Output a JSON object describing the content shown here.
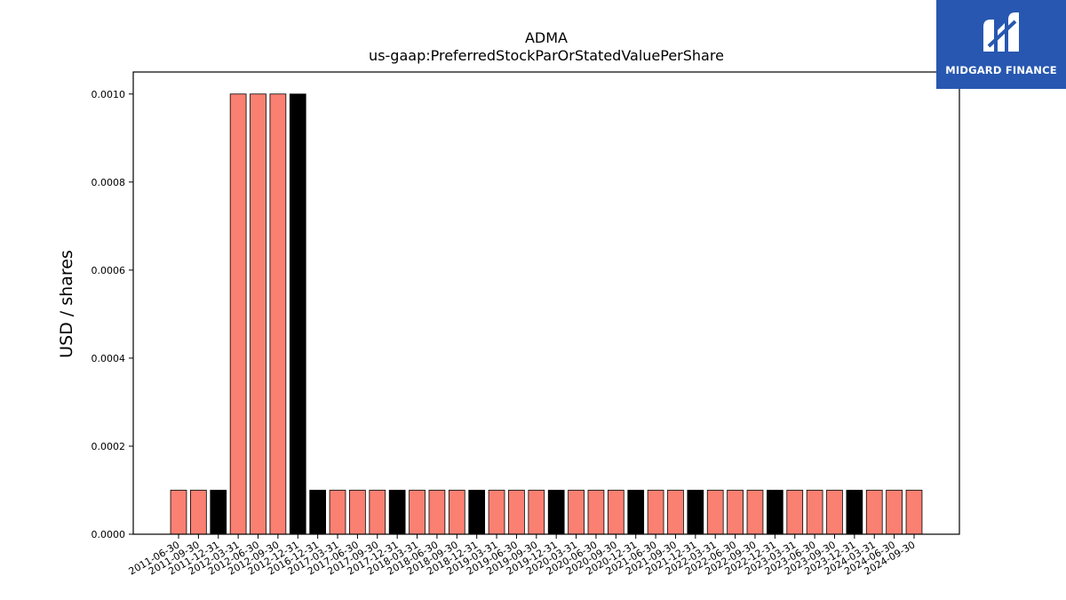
{
  "chart_data": {
    "type": "bar",
    "title": "ADMA",
    "subtitle": "us-gaap:PreferredStockParOrStatedValuePerShare",
    "xlabel": "",
    "ylabel": "USD / shares",
    "ylim": [
      0,
      0.00105
    ],
    "yticks": [
      "0.0000",
      "0.0002",
      "0.0004",
      "0.0006",
      "0.0008",
      "0.0010"
    ],
    "grid": false,
    "colors": {
      "default": "#fa8072",
      "highlight": "#000000",
      "edge": "#000000"
    },
    "categories": [
      "2011-06-30",
      "2011-09-30",
      "2011-12-31",
      "2012-03-31",
      "2012-06-30",
      "2012-09-30",
      "2012-12-31",
      "2016-12-31",
      "2017-03-31",
      "2017-06-30",
      "2017-09-30",
      "2017-12-31",
      "2018-03-31",
      "2018-06-30",
      "2018-09-30",
      "2018-12-31",
      "2019-03-31",
      "2019-06-30",
      "2019-09-30",
      "2019-12-31",
      "2020-03-31",
      "2020-06-30",
      "2020-09-30",
      "2020-12-31",
      "2021-06-30",
      "2021-09-30",
      "2021-12-31",
      "2022-03-31",
      "2022-06-30",
      "2022-09-30",
      "2022-12-31",
      "2023-03-31",
      "2023-06-30",
      "2023-09-30",
      "2023-12-31",
      "2024-03-31",
      "2024-06-30",
      "2024-09-30"
    ],
    "values": [
      0.0001,
      0.0001,
      0.0001,
      0.001,
      0.001,
      0.001,
      0.001,
      0.0001,
      0.0001,
      0.0001,
      0.0001,
      0.0001,
      0.0001,
      0.0001,
      0.0001,
      0.0001,
      0.0001,
      0.0001,
      0.0001,
      0.0001,
      0.0001,
      0.0001,
      0.0001,
      0.0001,
      0.0001,
      0.0001,
      0.0001,
      0.0001,
      0.0001,
      0.0001,
      0.0001,
      0.0001,
      0.0001,
      0.0001,
      0.0001,
      0.0001,
      0.0001,
      0.0001
    ]
  },
  "logo": {
    "text": "MIDGARD FINANCE"
  }
}
